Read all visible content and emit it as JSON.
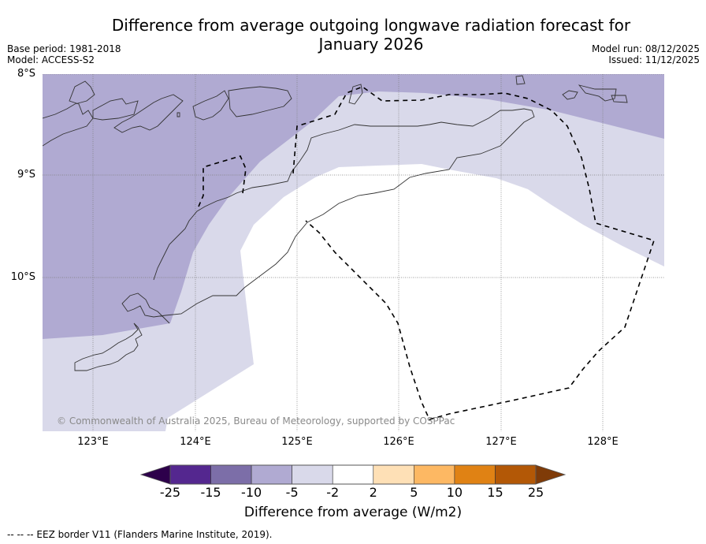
{
  "header": {
    "title_line1": "Difference from average outgoing longwave radiation forecast for",
    "title_line2": "January 2026",
    "base_period": "Base period: 1981-2018",
    "model": "Model: ACCESS-S2",
    "model_run": "Model run: 08/12/2025",
    "issued": "Issued: 11/12/2025"
  },
  "map": {
    "lat_labels": [
      "8°S",
      "9°S",
      "10°S"
    ],
    "lon_labels": [
      "123°E",
      "124°E",
      "125°E",
      "126°E",
      "127°E",
      "128°E"
    ],
    "extent": {
      "lon": [
        122.5,
        128.6
      ],
      "lat": [
        -11.5,
        -8.0
      ]
    },
    "copyright": "© Commonwealth of Australia 2025, Bureau of Meteorology, supported by COSPPac",
    "regions": [
      {
        "name": "-10 to -5",
        "color": "#b0aad2"
      },
      {
        "name": "-5 to -2",
        "color": "#d9d9ea"
      },
      {
        "name": "-2 to 2",
        "color": "#ffffff"
      }
    ]
  },
  "colorbar": {
    "ticks": [
      "-25",
      "-15",
      "-10",
      "-5",
      "-2",
      "2",
      "5",
      "10",
      "15",
      "25"
    ],
    "colors": [
      "#54278f",
      "#7c6ea8",
      "#b0aad2",
      "#d9d9ea",
      "#ffffff",
      "#fee0b6",
      "#fdb863",
      "#e08214",
      "#b35806"
    ],
    "under_color": "#2d004b",
    "over_color": "#7f3b08",
    "label": "Difference from average (W/m2)"
  },
  "footer": {
    "legend": "--  --  -- EEZ border V11 (Flanders Marine Institute, 2019)."
  }
}
